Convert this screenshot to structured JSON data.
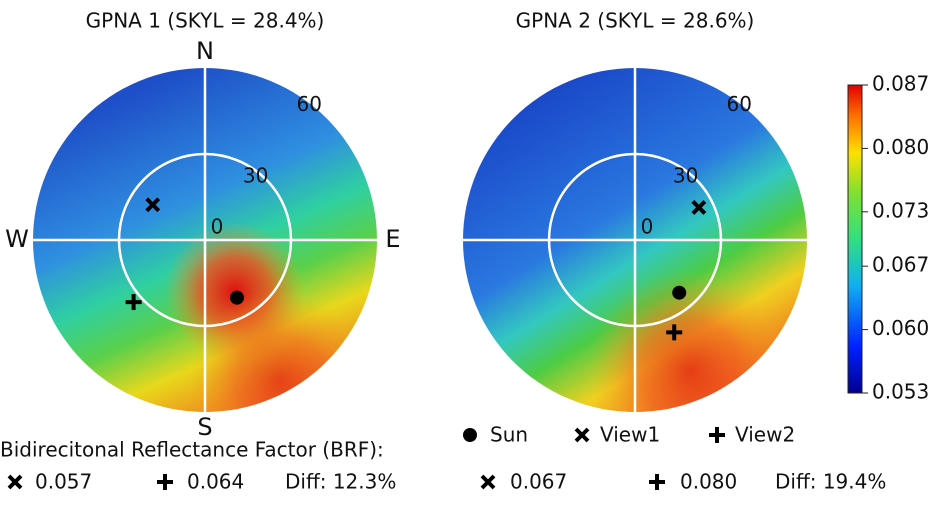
{
  "chart_data": [
    {
      "type": "polar",
      "title": "GPNA 1 (SKYL = 28.4%)",
      "rlim": [
        0,
        60
      ],
      "rticks": [
        0,
        30,
        60
      ],
      "direction_labels": [
        "N",
        "E",
        "S",
        "W"
      ],
      "points": [
        {
          "azimuth": 151,
          "zenith": 23
        },
        {
          "azimuth": 304,
          "zenith": 22
        },
        {
          "azimuth": 229,
          "zenith": 33
        }
      ]
    },
    {
      "type": "polar",
      "title": "GPNA 2 (SKYL = 28.6%)",
      "rlim": [
        0,
        60
      ],
      "rticks": [
        0,
        30,
        60
      ],
      "points": [
        {
          "azimuth": 140,
          "zenith": 24
        },
        {
          "azimuth": 63,
          "zenith": 25
        },
        {
          "azimuth": 157,
          "zenith": 35
        }
      ]
    }
  ],
  "legend": {
    "items": [
      {
        "name": "Sun",
        "marker": "circle"
      },
      {
        "name": "View1",
        "marker": "x"
      },
      {
        "name": "View2",
        "marker": "plus"
      }
    ]
  },
  "colorbar": {
    "clim": [
      0.053,
      0.087
    ],
    "ticks": [
      0.053,
      {
        "value": 0.06,
        "label": "0.060"
      },
      0.067,
      0.073,
      {
        "value": 0.08,
        "label": "0.080"
      },
      0.087
    ]
  },
  "brf": {
    "label": "Bidirecitonal Reflectance Factor (BRF):",
    "panels": [
      {
        "view1": 0.057,
        "view2": 0.064,
        "diff": {
          "value": 12.3,
          "label": "Diff: 12.3%"
        }
      },
      {
        "view1": 0.067,
        "view2": {
          "value": 0.08,
          "label": "0.080"
        },
        "diff": {
          "value": 19.4,
          "label": "Diff: 19.4%"
        }
      }
    ]
  }
}
